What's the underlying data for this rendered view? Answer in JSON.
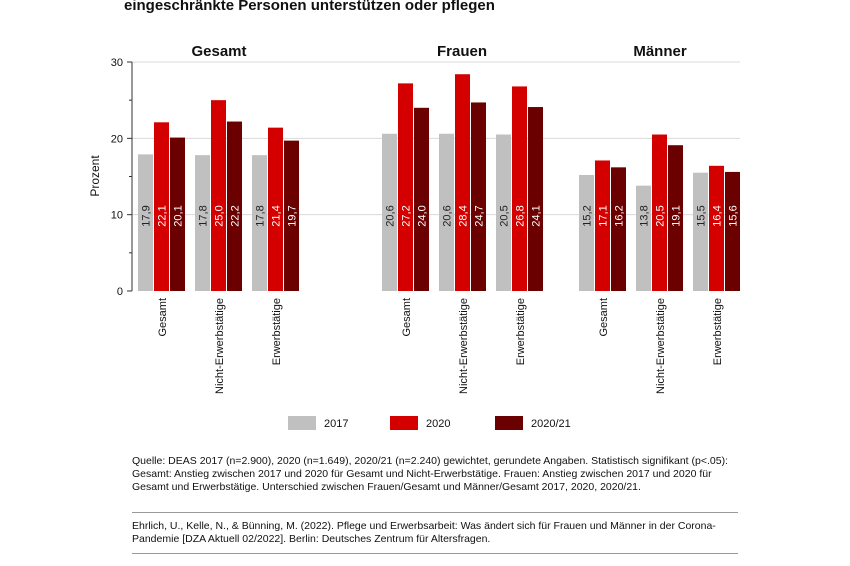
{
  "title": "eingeschränkte Personen unterstützen oder pflegen",
  "colors": {
    "2017": "#c0c0c0",
    "2020": "#d40000",
    "2020/21": "#6b0000",
    "grid": "#d9d9d9"
  },
  "chart_data": {
    "type": "bar",
    "ylabel": "Prozent",
    "ylim": [
      0,
      30
    ],
    "yticks": [
      0,
      10,
      20,
      30
    ],
    "grid": true,
    "legend_position": "bottom",
    "series_names": [
      "2017",
      "2020",
      "2020/21"
    ],
    "panels": [
      {
        "title": "Gesamt",
        "categories": [
          "Gesamt",
          "Nicht-Erwerbstätige",
          "Erwerbstätige"
        ],
        "series": [
          {
            "name": "2017",
            "values": [
              17.9,
              17.8,
              17.8
            ]
          },
          {
            "name": "2020",
            "values": [
              22.1,
              25.0,
              21.4
            ]
          },
          {
            "name": "2020/21",
            "values": [
              20.1,
              22.2,
              19.7
            ]
          }
        ]
      },
      {
        "title": "Frauen",
        "categories": [
          "Gesamt",
          "Nicht-Erwerbstätige",
          "Erwerbstätige"
        ],
        "series": [
          {
            "name": "2017",
            "values": [
              20.6,
              20.6,
              20.5
            ]
          },
          {
            "name": "2020",
            "values": [
              27.2,
              28.4,
              26.8
            ]
          },
          {
            "name": "2020/21",
            "values": [
              24.0,
              24.7,
              24.1
            ]
          }
        ]
      },
      {
        "title": "Männer",
        "categories": [
          "Gesamt",
          "Nicht-Erwerbstätige",
          "Erwerbstätige"
        ],
        "series": [
          {
            "name": "2017",
            "values": [
              15.2,
              13.8,
              15.5
            ]
          },
          {
            "name": "2020",
            "values": [
              17.1,
              20.5,
              16.4
            ]
          },
          {
            "name": "2020/21",
            "values": [
              16.2,
              19.1,
              15.6
            ]
          }
        ]
      }
    ]
  },
  "source": "Quelle: DEAS 2017 (n=2.900), 2020 (n=1.649), 2020/21 (n=2.240) gewichtet, gerundete Angaben. Statistisch signifikant (p<.05): Gesamt: Anstieg zwischen 2017 und 2020 für Gesamt und Nicht-Erwerbstätige. Frauen: Anstieg zwischen 2017 und 2020 für Gesamt und Erwerbstätige. Unterschied zwischen Frauen/Gesamt und Männer/Gesamt 2017, 2020, 2020/21.",
  "citation": "Ehrlich, U., Kelle, N., & Bünning, M. (2022). Pflege und Erwerbsarbeit: Was ändert sich für Frauen und Männer in der Corona-Pandemie [DZA Aktuell 02/2022]. Berlin: Deutsches Zentrum für Altersfragen."
}
